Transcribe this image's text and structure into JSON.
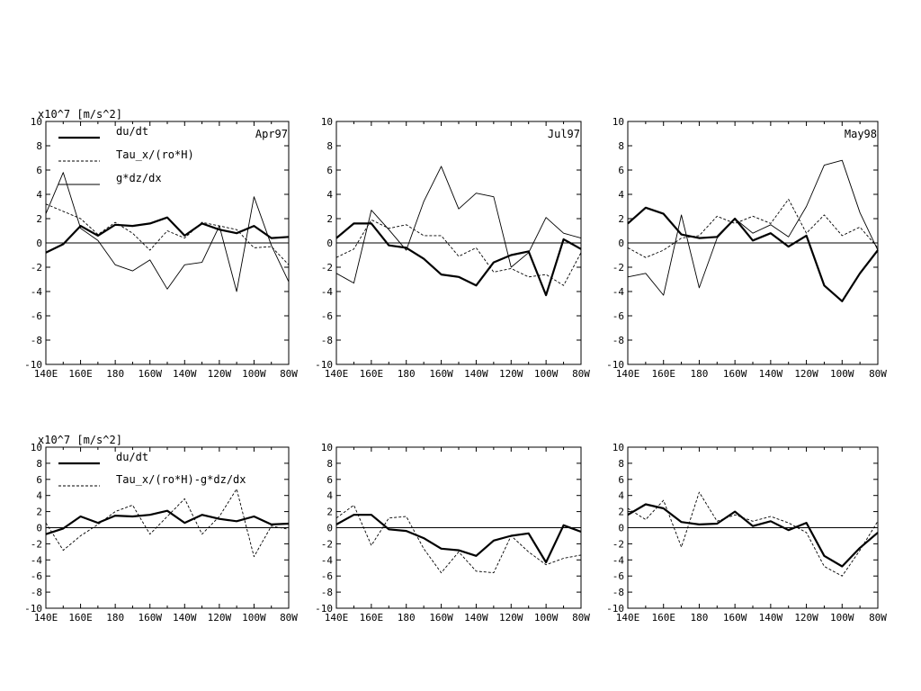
{
  "chart_data": [
    {
      "type": "line",
      "unit_label": "x10^7 [m/s^2]",
      "month_label": "Apr97",
      "x": [
        140,
        150,
        160,
        170,
        180,
        190,
        200,
        210,
        220,
        230,
        240,
        250,
        260,
        270,
        280
      ],
      "xticks": [
        "140E",
        "160E",
        "180",
        "160W",
        "140W",
        "120W",
        "100W",
        "80W"
      ],
      "yticks": [
        "10",
        "8",
        "6",
        "4",
        "2",
        "0",
        "-2",
        "-4",
        "-6",
        "-8",
        "-10"
      ],
      "xlim": [
        140,
        280
      ],
      "ylim": [
        -10,
        10
      ],
      "series": [
        {
          "name": "du/dt",
          "style": "thick",
          "values": [
            -0.8,
            -0.1,
            1.4,
            0.6,
            1.5,
            1.4,
            1.6,
            2.1,
            0.6,
            1.6,
            1.1,
            0.8,
            1.4,
            0.4,
            0.5
          ]
        },
        {
          "name": "Tau_x/(ro*H)",
          "style": "dashed",
          "values": [
            3.2,
            2.6,
            2.0,
            0.7,
            1.7,
            0.8,
            -0.6,
            1.0,
            0.4,
            1.7,
            1.4,
            1.1,
            -0.4,
            -0.3,
            -1.8
          ]
        },
        {
          "name": "g*dz/dx",
          "style": "thin",
          "values": [
            2.4,
            5.8,
            1.2,
            0.2,
            -1.8,
            -2.3,
            -1.4,
            -3.8,
            -1.8,
            -1.6,
            1.4,
            -4.0,
            3.8,
            -0.2,
            -3.2
          ]
        }
      ]
    },
    {
      "type": "line",
      "month_label": "Jul97",
      "x": [
        140,
        150,
        160,
        170,
        180,
        190,
        200,
        210,
        220,
        230,
        240,
        250,
        260,
        270,
        280
      ],
      "xticks": [
        "140E",
        "160E",
        "180",
        "160W",
        "140W",
        "120W",
        "100W",
        "80W"
      ],
      "yticks": [
        "10",
        "8",
        "6",
        "4",
        "2",
        "0",
        "-2",
        "-4",
        "-6",
        "-8",
        "-10"
      ],
      "xlim": [
        140,
        280
      ],
      "ylim": [
        -10,
        10
      ],
      "series": [
        {
          "name": "du/dt",
          "style": "thick",
          "values": [
            0.4,
            1.6,
            1.6,
            -0.2,
            -0.4,
            -1.3,
            -2.6,
            -2.8,
            -3.5,
            -1.6,
            -1.0,
            -0.7,
            -4.3,
            0.3,
            -0.5
          ]
        },
        {
          "name": "Tau_x/(ro*H)",
          "style": "dashed",
          "values": [
            -1.2,
            -0.5,
            1.9,
            1.2,
            1.5,
            0.6,
            0.6,
            -1.1,
            -0.4,
            -2.4,
            -2.1,
            -2.8,
            -2.6,
            -3.5,
            -0.8
          ]
        },
        {
          "name": "g*dz/dx",
          "style": "thin",
          "values": [
            -2.5,
            -3.3,
            2.7,
            1.1,
            -0.6,
            3.4,
            6.3,
            2.8,
            4.1,
            3.8,
            -2.0,
            -0.8,
            2.1,
            0.8,
            0.4
          ]
        }
      ]
    },
    {
      "type": "line",
      "month_label": "May98",
      "x": [
        140,
        150,
        160,
        170,
        180,
        190,
        200,
        210,
        220,
        230,
        240,
        250,
        260,
        270,
        280
      ],
      "xticks": [
        "140E",
        "160E",
        "180",
        "160W",
        "140W",
        "120W",
        "100W",
        "80W"
      ],
      "yticks": [
        "10",
        "8",
        "6",
        "4",
        "2",
        "0",
        "-2",
        "-4",
        "-6",
        "-8",
        "-10"
      ],
      "xlim": [
        140,
        280
      ],
      "ylim": [
        -10,
        10
      ],
      "series": [
        {
          "name": "du/dt",
          "style": "thick",
          "values": [
            1.6,
            2.9,
            2.4,
            0.7,
            0.4,
            0.5,
            2.0,
            0.2,
            0.8,
            -0.3,
            0.6,
            -3.5,
            -4.8,
            -2.5,
            -0.6
          ]
        },
        {
          "name": "Tau_x/(ro*H)",
          "style": "dashed",
          "values": [
            -0.4,
            -1.2,
            -0.6,
            0.4,
            0.6,
            2.2,
            1.6,
            2.2,
            1.6,
            3.6,
            0.8,
            2.3,
            0.6,
            1.3,
            -0.4
          ]
        },
        {
          "name": "g*dz/dx",
          "style": "thin",
          "values": [
            -2.8,
            -2.5,
            -4.3,
            2.3,
            -3.7,
            0.4,
            2.0,
            0.8,
            1.5,
            0.5,
            3.0,
            6.4,
            6.8,
            2.5,
            -0.6
          ]
        }
      ]
    },
    {
      "type": "line",
      "unit_label": "x10^7 [m/s^2]",
      "x": [
        140,
        150,
        160,
        170,
        180,
        190,
        200,
        210,
        220,
        230,
        240,
        250,
        260,
        270,
        280
      ],
      "xticks": [
        "140E",
        "160E",
        "180",
        "160W",
        "140W",
        "120W",
        "100W",
        "80W"
      ],
      "yticks": [
        "10",
        "8",
        "6",
        "4",
        "2",
        "0",
        "-2",
        "-4",
        "-6",
        "-8",
        "-10"
      ],
      "xlim": [
        140,
        280
      ],
      "ylim": [
        -10,
        10
      ],
      "series": [
        {
          "name": "du/dt",
          "style": "thick",
          "values": [
            -0.8,
            -0.1,
            1.4,
            0.6,
            1.5,
            1.4,
            1.6,
            2.1,
            0.6,
            1.6,
            1.1,
            0.8,
            1.4,
            0.4,
            0.5
          ]
        },
        {
          "name": "Tau_x/(ro*H)-g*dz/dx",
          "style": "dashed",
          "values": [
            0.6,
            -2.8,
            -1.0,
            0.4,
            2.0,
            2.8,
            -0.8,
            1.4,
            3.6,
            -0.8,
            1.4,
            4.8,
            -3.6,
            0.2,
            -0.2
          ]
        }
      ]
    },
    {
      "type": "line",
      "x": [
        140,
        150,
        160,
        170,
        180,
        190,
        200,
        210,
        220,
        230,
        240,
        250,
        260,
        270,
        280
      ],
      "xticks": [
        "140E",
        "160E",
        "180",
        "160W",
        "140W",
        "120W",
        "100W",
        "80W"
      ],
      "yticks": [
        "10",
        "8",
        "6",
        "4",
        "2",
        "0",
        "-2",
        "-4",
        "-6",
        "-8",
        "-10"
      ],
      "xlim": [
        140,
        280
      ],
      "ylim": [
        -10,
        10
      ],
      "series": [
        {
          "name": "du/dt",
          "style": "thick",
          "values": [
            0.4,
            1.6,
            1.6,
            -0.2,
            -0.4,
            -1.3,
            -2.6,
            -2.8,
            -3.5,
            -1.6,
            -1.0,
            -0.7,
            -4.3,
            0.3,
            -0.5
          ]
        },
        {
          "name": "Tau_x/(ro*H)-g*dz/dx",
          "style": "dashed",
          "values": [
            1.2,
            2.8,
            -2.2,
            1.2,
            1.4,
            -2.6,
            -5.6,
            -3.0,
            -5.4,
            -5.6,
            -1.0,
            -3.0,
            -4.6,
            -3.8,
            -3.4
          ]
        }
      ]
    },
    {
      "type": "line",
      "x": [
        140,
        150,
        160,
        170,
        180,
        190,
        200,
        210,
        220,
        230,
        240,
        250,
        260,
        270,
        280
      ],
      "xticks": [
        "140E",
        "160E",
        "180",
        "160W",
        "140W",
        "120W",
        "100W",
        "80W"
      ],
      "yticks": [
        "10",
        "8",
        "6",
        "4",
        "2",
        "0",
        "-2",
        "-4",
        "-6",
        "-8",
        "-10"
      ],
      "xlim": [
        140,
        280
      ],
      "ylim": [
        -10,
        10
      ],
      "series": [
        {
          "name": "du/dt",
          "style": "thick",
          "values": [
            1.6,
            2.9,
            2.4,
            0.7,
            0.4,
            0.5,
            2.0,
            0.2,
            0.8,
            -0.3,
            0.6,
            -3.5,
            -4.8,
            -2.5,
            -0.6
          ]
        },
        {
          "name": "Tau_x/(ro*H)-g*dz/dx",
          "style": "dashed",
          "values": [
            2.4,
            1.0,
            3.4,
            -2.4,
            4.4,
            0.8,
            1.6,
            0.8,
            1.4,
            0.6,
            -0.6,
            -4.8,
            -6.0,
            -2.8,
            0.8
          ]
        }
      ]
    }
  ]
}
